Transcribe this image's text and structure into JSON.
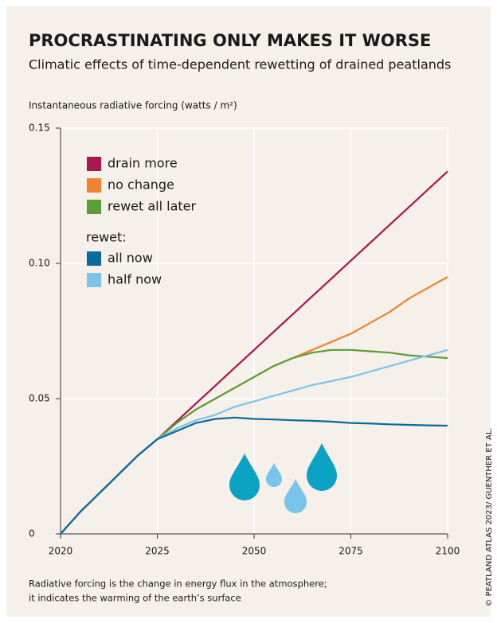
{
  "chart_data": {
    "type": "line",
    "title": "PROCRASTINATING ONLY MAKES IT WORSE",
    "subtitle": "Climatic effects of time-dependent rewetting of drained peatlands",
    "y_label": "Instantaneous radiative forcing (watts / m²)",
    "footnote": [
      "Radiative forcing is the change in energy flux in the atmosphere;",
      "it indicates the warming of the earth’s surface"
    ],
    "credit": "© PEATLAND ATLAS 2023/ GUENTHER ET AL.",
    "legend_heading": "rewet:",
    "x": [
      2020,
      2021,
      2022,
      2023,
      2024,
      2025,
      2030,
      2035,
      2040,
      2045,
      2050,
      2055,
      2060,
      2065,
      2070,
      2075,
      2080,
      2085,
      2090,
      2095,
      2100
    ],
    "xlim": [
      2020,
      2100
    ],
    "xticks": [
      2020,
      2025,
      2050,
      2075,
      2100
    ],
    "ylim": [
      0,
      0.15
    ],
    "yticks": [
      0,
      0.05,
      {
        "value": 0.1,
        "label": "0.10"
      },
      0.15
    ],
    "series": [
      {
        "name": "drain more",
        "color": "#a8174f",
        "values": [
          0,
          0.008,
          0.015,
          0.022,
          0.029,
          0.035,
          0.0416,
          0.0482,
          0.0548,
          0.0614,
          0.068,
          0.0746,
          0.0812,
          0.0878,
          0.0944,
          0.101,
          0.1076,
          0.1142,
          0.1208,
          0.1274,
          0.134
        ]
      },
      {
        "name": "no change",
        "color": "#f0832d",
        "values": [
          0,
          0.008,
          0.015,
          0.022,
          0.029,
          0.035,
          0.041,
          0.046,
          0.05,
          0.054,
          0.058,
          0.062,
          0.065,
          0.068,
          0.071,
          0.074,
          0.078,
          0.082,
          0.087,
          0.091,
          0.095
        ]
      },
      {
        "name": "rewet all later",
        "color": "#5a9e35",
        "values": [
          0,
          0.008,
          0.015,
          0.022,
          0.029,
          0.035,
          0.041,
          0.046,
          0.05,
          0.054,
          0.058,
          0.062,
          0.065,
          0.067,
          0.068,
          0.068,
          0.0675,
          0.067,
          0.066,
          0.0655,
          0.065
        ]
      },
      {
        "name": "all now",
        "color": "#0a6a9c",
        "values": [
          0,
          0.008,
          0.015,
          0.022,
          0.029,
          0.035,
          0.038,
          0.041,
          0.0425,
          0.043,
          0.0425,
          0.0423,
          0.042,
          0.0418,
          0.0415,
          0.041,
          0.0408,
          0.0405,
          0.0403,
          0.0401,
          0.04
        ]
      },
      {
        "name": "half now",
        "color": "#7ac4ea",
        "values": [
          0,
          0.008,
          0.015,
          0.022,
          0.029,
          0.035,
          0.039,
          0.042,
          0.044,
          0.047,
          0.049,
          0.051,
          0.053,
          0.055,
          0.0565,
          0.058,
          0.06,
          0.062,
          0.064,
          0.066,
          0.068
        ]
      }
    ],
    "grid": true
  }
}
